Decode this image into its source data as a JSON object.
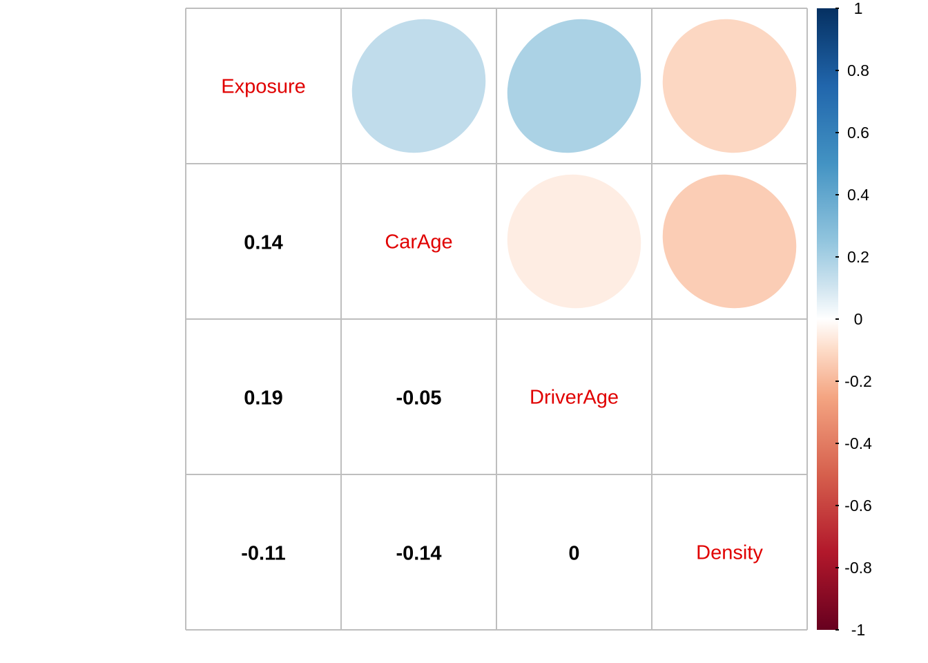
{
  "chart_data": {
    "type": "heatmap",
    "variables": [
      "Exposure",
      "CarAge",
      "DriverAge",
      "Density"
    ],
    "matrix": [
      [
        1,
        0.14,
        0.19,
        -0.11
      ],
      [
        0.14,
        1,
        -0.05,
        -0.14
      ],
      [
        0.19,
        -0.05,
        1,
        0
      ],
      [
        -0.11,
        -0.14,
        0,
        1
      ]
    ],
    "lower_triangle": [
      {
        "row": "CarAge",
        "col": "Exposure",
        "value": 0.14,
        "label": "0.14"
      },
      {
        "row": "DriverAge",
        "col": "Exposure",
        "value": 0.19,
        "label": "0.19"
      },
      {
        "row": "DriverAge",
        "col": "CarAge",
        "value": -0.05,
        "label": "-0.05"
      },
      {
        "row": "Density",
        "col": "Exposure",
        "value": -0.11,
        "label": "-0.11"
      },
      {
        "row": "Density",
        "col": "CarAge",
        "value": -0.14,
        "label": "-0.14"
      },
      {
        "row": "Density",
        "col": "DriverAge",
        "value": 0,
        "label": "0"
      }
    ],
    "upper_triangle_glyph": "ellipse",
    "color_scale": {
      "range": [
        -1,
        1
      ],
      "ticks": [
        "1",
        "0.8",
        "0.6",
        "0.4",
        "0.2",
        "0",
        "-0.2",
        "-0.4",
        "-0.6",
        "-0.8",
        "-1"
      ],
      "stops": [
        {
          "value": -1,
          "color": "#67001f"
        },
        {
          "value": -0.75,
          "color": "#b2182b"
        },
        {
          "value": -0.5,
          "color": "#d6604d"
        },
        {
          "value": -0.25,
          "color": "#f4a582"
        },
        {
          "value": -0.1,
          "color": "#fddbc7"
        },
        {
          "value": 0,
          "color": "#ffffff"
        },
        {
          "value": 0.1,
          "color": "#d1e5f0"
        },
        {
          "value": 0.25,
          "color": "#92c5de"
        },
        {
          "value": 0.5,
          "color": "#4393c3"
        },
        {
          "value": 0.75,
          "color": "#2166ac"
        },
        {
          "value": 1,
          "color": "#053061"
        }
      ]
    },
    "diagonal_label_color": "#e00000",
    "grid_color": "#bebebe"
  }
}
